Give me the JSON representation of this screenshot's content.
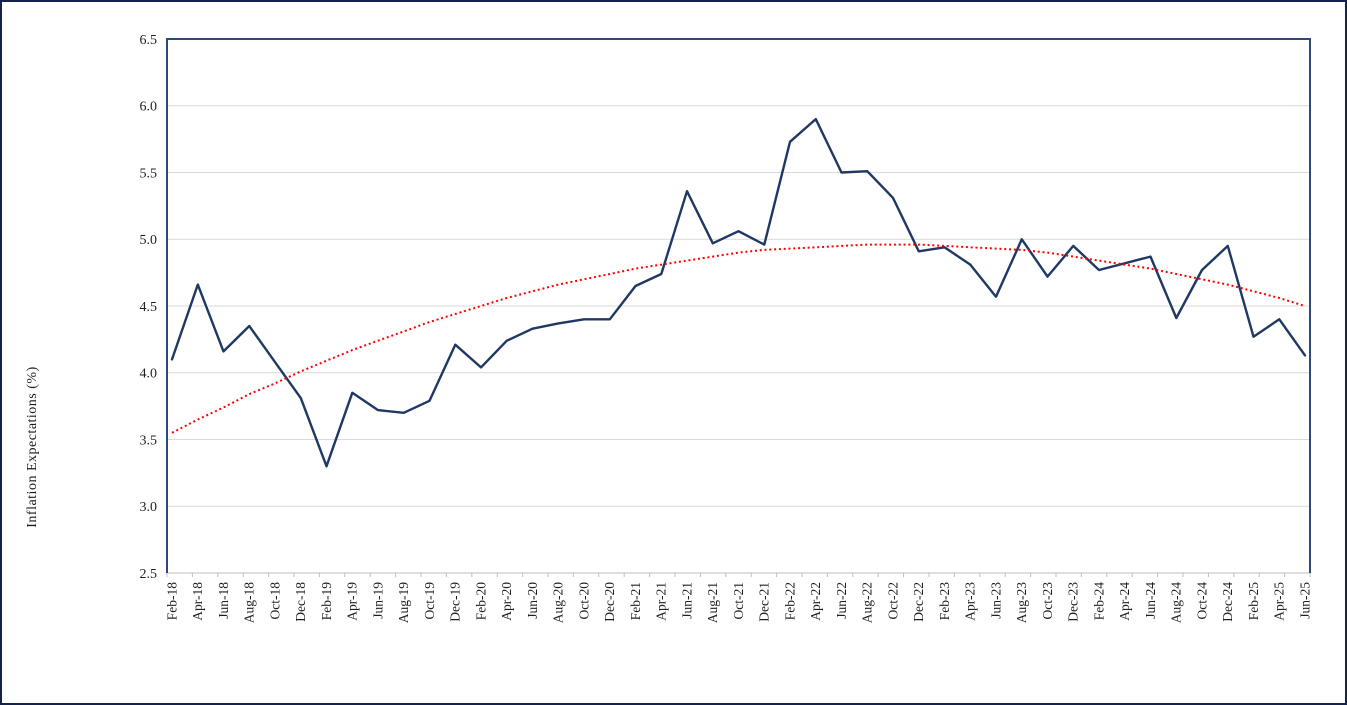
{
  "figure": {
    "outer_border_color": "#14224f",
    "background": "#ffffff"
  },
  "axis": {
    "y_title": "Inflation Expectations (%)"
  },
  "chart_data": {
    "type": "line",
    "title": "",
    "xlabel": "",
    "ylabel": "Inflation Expectations (%)",
    "ylim": [
      2.5,
      6.5
    ],
    "ytick_step": 0.5,
    "ytick_labels": [
      "2.5",
      "3.0",
      "3.5",
      "4.0",
      "4.5",
      "5.0",
      "5.5",
      "6.0",
      "6.5"
    ],
    "grid": true,
    "legend": "none",
    "x_tick_rotation": 90,
    "colors": {
      "series": "#1f3864",
      "trend": "#ff0000",
      "gridline": "#d9d9d9",
      "axis_line": "#bfbfbf",
      "plot_border": "#2c4a7c"
    },
    "categories": [
      "Feb-18",
      "Apr-18",
      "Jun-18",
      "Aug-18",
      "Oct-18",
      "Dec-18",
      "Feb-19",
      "Apr-19",
      "Jun-19",
      "Aug-19",
      "Oct-19",
      "Dec-19",
      "Feb-20",
      "Apr-20",
      "Jun-20",
      "Aug-20",
      "Oct-20",
      "Dec-20",
      "Feb-21",
      "Apr-21",
      "Jun-21",
      "Aug-21",
      "Oct-21",
      "Dec-21",
      "Feb-22",
      "Apr-22",
      "Jun-22",
      "Aug-22",
      "Oct-22",
      "Dec-22",
      "Feb-23",
      "Apr-23",
      "Jun-23",
      "Aug-23",
      "Oct-23",
      "Dec-23",
      "Feb-24",
      "Apr-24",
      "Jun-24",
      "Aug-24",
      "Oct-24",
      "Dec-24",
      "Feb-25",
      "Apr-25",
      "Jun-25"
    ],
    "series": [
      {
        "name": "Inflation Expectations",
        "style": "solid",
        "color": "#1f3864",
        "values": [
          4.1,
          4.66,
          4.16,
          4.35,
          4.08,
          3.81,
          3.3,
          3.85,
          3.72,
          3.7,
          3.79,
          4.21,
          4.04,
          4.24,
          4.33,
          4.37,
          4.4,
          4.4,
          4.65,
          4.74,
          5.36,
          4.97,
          5.06,
          4.96,
          5.73,
          5.9,
          5.5,
          5.51,
          5.31,
          4.91,
          4.94,
          4.81,
          4.57,
          5.0,
          4.72,
          4.95,
          4.77,
          4.82,
          4.87,
          4.41,
          4.77,
          4.95,
          4.27,
          4.4,
          4.13
        ]
      },
      {
        "name": "Trend (polynomial)",
        "style": "dotted",
        "color": "#ff0000",
        "values": [
          3.55,
          3.65,
          3.74,
          3.84,
          3.92,
          4.01,
          4.09,
          4.17,
          4.24,
          4.31,
          4.38,
          4.44,
          4.5,
          4.56,
          4.61,
          4.66,
          4.7,
          4.74,
          4.78,
          4.81,
          4.84,
          4.87,
          4.9,
          4.92,
          4.93,
          4.94,
          4.95,
          4.96,
          4.96,
          4.96,
          4.95,
          4.94,
          4.93,
          4.92,
          4.9,
          4.87,
          4.84,
          4.81,
          4.78,
          4.74,
          4.7,
          4.66,
          4.61,
          4.56,
          4.5
        ]
      }
    ]
  }
}
